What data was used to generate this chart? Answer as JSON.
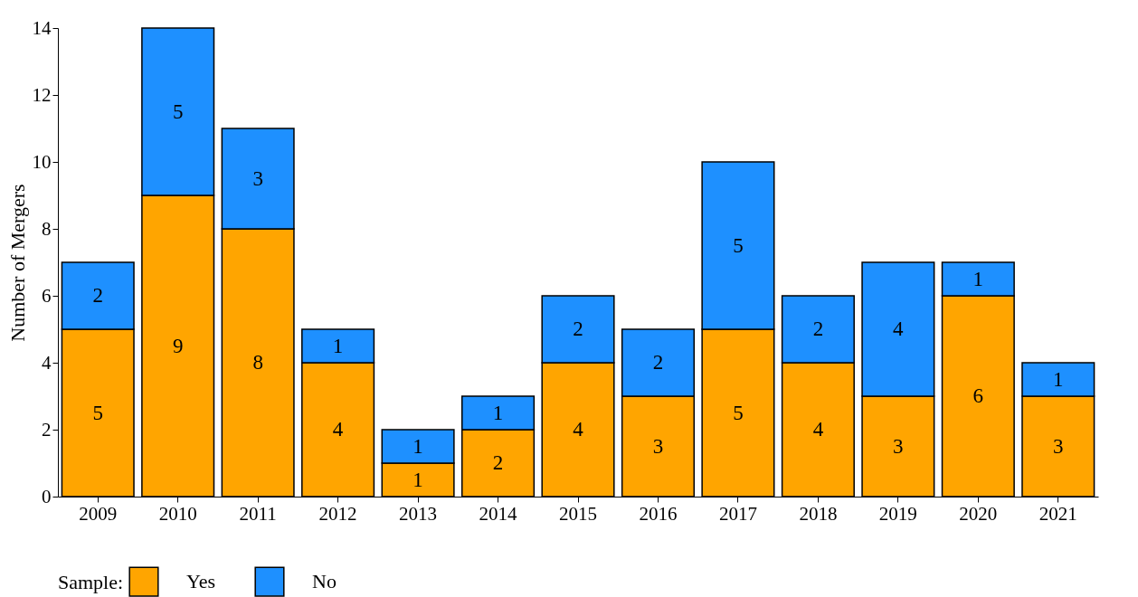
{
  "chart_data": {
    "type": "bar",
    "stacked": true,
    "ylabel": "Number of Mergers",
    "legend_title": "Sample:",
    "legend": "bottom",
    "grid": false,
    "data_labels": true,
    "categories": [
      "2009",
      "2010",
      "2011",
      "2012",
      "2013",
      "2014",
      "2015",
      "2016",
      "2017",
      "2018",
      "2019",
      "2020",
      "2021"
    ],
    "ylim": [
      0,
      14
    ],
    "yticks": [
      0,
      2,
      4,
      6,
      8,
      10,
      12,
      14
    ],
    "series": [
      {
        "name": "Yes",
        "color": "#ffa500",
        "values": [
          5,
          9,
          8,
          4,
          1,
          2,
          4,
          3,
          5,
          4,
          3,
          6,
          3
        ]
      },
      {
        "name": "No",
        "color": "#1e90ff",
        "values": [
          2,
          5,
          3,
          1,
          1,
          1,
          2,
          2,
          5,
          2,
          4,
          1,
          1
        ]
      }
    ]
  }
}
